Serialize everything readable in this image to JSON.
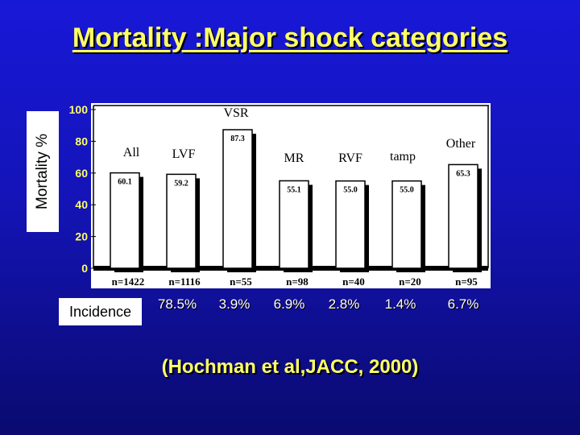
{
  "title": "Mortality :Major shock categories",
  "citation": "(Hochman et al,JACC, 2000)",
  "incidence_label": "Incidence",
  "colors": {
    "background": "#1414b8",
    "title": "#ffff66",
    "plot_bg": "#ffffff",
    "bar_fill": "#ffffff",
    "bar_shadow": "#000000"
  },
  "chart_data": {
    "type": "bar",
    "title": "",
    "xlabel": "",
    "ylabel": "Mortality %",
    "ylim": [
      0,
      100
    ],
    "yticks": [
      0,
      20,
      40,
      60,
      80,
      100
    ],
    "grid": false,
    "categories": [
      "All",
      "LVF",
      "VSR",
      "MR",
      "RVF",
      "tamp",
      "Other"
    ],
    "values": [
      60.1,
      59.2,
      87.3,
      55.1,
      55.0,
      55.0,
      65.3
    ],
    "value_labels": [
      "60.1",
      "59.2",
      "87.3",
      "55.1",
      "55.0",
      "55.0",
      "65.3"
    ],
    "n_labels": [
      "n=1422",
      "n=1116",
      "n=55",
      "n=98",
      "n=40",
      "n=20",
      "n=95"
    ],
    "incidence": [
      "78.5%",
      "3.9%",
      "6.9%",
      "2.8%",
      "1.4%",
      "6.7%"
    ]
  }
}
